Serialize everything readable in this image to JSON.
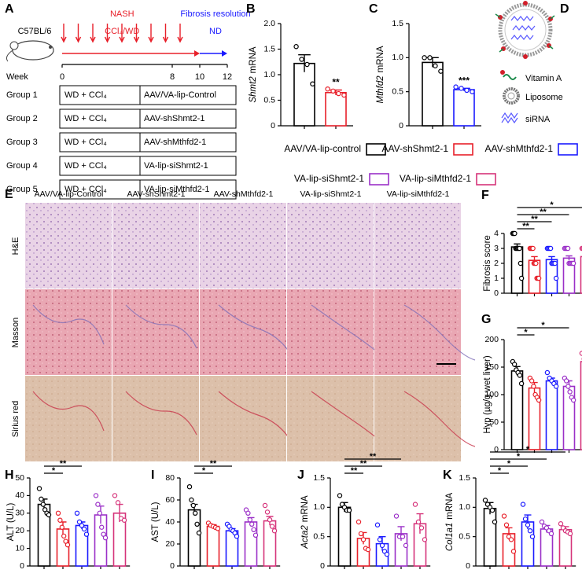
{
  "panel_a": {
    "label": "A",
    "strain": "C57BL/6",
    "axis_label": "Week",
    "xlim": [
      0,
      12
    ],
    "xticks": [
      0,
      8,
      10,
      12
    ],
    "phases": [
      {
        "label": "NASH",
        "sub": "CCl₄/WD",
        "start": 0,
        "end": 10,
        "color": "#e8202a"
      },
      {
        "label": "Fibrosis resolution",
        "sub": "ND",
        "start": 10,
        "end": 12,
        "color": "#1a1aff"
      }
    ],
    "groups": [
      [
        "Group 1",
        "WD + CCl₄",
        "AAV/VA-lip-Control"
      ],
      [
        "Group 2",
        "WD + CCl₄",
        "AAV-shShmt2-1"
      ],
      [
        "Group 3",
        "WD + CCl₄",
        "AAV-shMthfd2-1"
      ],
      [
        "Group 4",
        "WD + CCl₄",
        "VA-lip-siShmt2-1"
      ],
      [
        "Group 5",
        "WD + CCl₄",
        "VA-lip-siMthfd2-1"
      ]
    ]
  },
  "panel_d": {
    "label": "D",
    "items": [
      "Vitamin A",
      "Liposome",
      "siRNA"
    ]
  },
  "panel_e": {
    "label": "E",
    "columns": [
      "AAV/VA-lip-Control",
      "AAV-shShmt2-1",
      "AAV-shMthfd2-1",
      "VA-lip-siShmt2-1",
      "VA-lip-siMthfd2-1"
    ],
    "rows": [
      "H&E",
      "Masson",
      "Sirius red"
    ]
  },
  "legend": [
    {
      "name": "AAV/VA-lip-control",
      "color": "#000000"
    },
    {
      "name": "AAV-shShmt2-1",
      "color": "#e8202a"
    },
    {
      "name": "AAV-shMthfd2-1",
      "color": "#1a1aff"
    },
    {
      "name": "VA-lip-siShmt2-1",
      "color": "#9b30c8"
    },
    {
      "name": "VA-lip-siMthfd2-1",
      "color": "#d6337a"
    }
  ],
  "chart_data": [
    {
      "type": "bar",
      "panel": "B",
      "ylabel": [
        "Shmt2",
        "mRNA"
      ],
      "ylabel_italic": true,
      "ylim": [
        0,
        2
      ],
      "yticks": [
        0,
        0.5,
        {
          "value": 1,
          "label": "1.0"
        },
        1.5,
        {
          "value": 2,
          "label": "2.0"
        }
      ],
      "colors": [
        "#000000",
        "#e8202a"
      ],
      "values": [
        1.22,
        0.65
      ],
      "errors": [
        0.17,
        0.05
      ],
      "points": [
        [
          1.55,
          1.3,
          1.2,
          0.82
        ],
        [
          0.72,
          0.68,
          0.63,
          0.6
        ]
      ],
      "annotations": [
        {
          "text": "**",
          "at": 1
        }
      ]
    },
    {
      "type": "bar",
      "panel": "C",
      "ylabel": [
        "Mthfd2",
        "mRNA"
      ],
      "ylabel_italic": true,
      "ylim": [
        0,
        1.5
      ],
      "yticks": [
        0,
        0.5,
        {
          "value": 1,
          "label": "1.0"
        },
        1.5
      ],
      "colors": [
        "#000000",
        "#1a1aff"
      ],
      "values": [
        0.93,
        0.53
      ],
      "errors": [
        0.07,
        0.02
      ],
      "points": [
        [
          1.0,
          1.0,
          0.88,
          0.8
        ],
        [
          0.57,
          0.55,
          0.52,
          0.5
        ]
      ],
      "annotations": [
        {
          "text": "***",
          "at": 1
        }
      ]
    },
    {
      "type": "bar",
      "panel": "F",
      "ylabel": [
        "Fibrosis  score"
      ],
      "ylabel_italic": false,
      "ylim": [
        0,
        4
      ],
      "yticks": [
        0,
        1,
        2,
        3,
        4
      ],
      "colors": [
        "#000000",
        "#e8202a",
        "#1a1aff",
        "#9b30c8",
        "#d6337a"
      ],
      "values": [
        3.1,
        2.2,
        2.25,
        2.35,
        2.45
      ],
      "errors": [
        0.2,
        0.25,
        0.2,
        0.15,
        0.15
      ],
      "points": [
        [
          4,
          4,
          4,
          3,
          3,
          3,
          3,
          3,
          2,
          1
        ],
        [
          3,
          3,
          3,
          3,
          2,
          2,
          2,
          1,
          1,
          1
        ],
        [
          3,
          3,
          3,
          3,
          2,
          2,
          2,
          2,
          1
        ],
        [
          3,
          3,
          3,
          3,
          2,
          2,
          2,
          2,
          2
        ],
        [
          3,
          3,
          3,
          3,
          3,
          2,
          2,
          2,
          2
        ]
      ],
      "annotations": [
        {
          "text": "**",
          "from": 0,
          "to": 1
        },
        {
          "text": "**",
          "from": 0,
          "to": 2
        },
        {
          "text": "**",
          "from": 0,
          "to": 3
        },
        {
          "text": "*",
          "from": 0,
          "to": 4
        }
      ]
    },
    {
      "type": "bar",
      "panel": "G",
      "ylabel": [
        "Hyp (µg/g wet liver)"
      ],
      "ylabel_italic": false,
      "ylim": [
        0,
        200
      ],
      "yticks": [
        0,
        50,
        100,
        150,
        200
      ],
      "colors": [
        "#000000",
        "#e8202a",
        "#1a1aff",
        "#9b30c8",
        "#d6337a"
      ],
      "values": [
        143,
        112,
        125,
        115,
        160
      ],
      "errors": [
        8,
        10,
        5,
        10,
        6
      ],
      "points": [
        [
          160,
          155,
          145,
          140,
          135,
          120
        ],
        [
          130,
          125,
          115,
          100,
          95,
          90
        ],
        [
          140,
          130,
          125,
          120,
          115
        ],
        [
          130,
          125,
          115,
          105,
          95,
          90
        ],
        [
          175,
          165,
          160,
          155,
          150
        ]
      ],
      "annotations": [
        {
          "text": "*",
          "from": 0,
          "to": 1
        },
        {
          "text": "*",
          "from": 0,
          "to": 3
        }
      ]
    },
    {
      "type": "bar",
      "panel": "H",
      "ylabel": [
        "ALT (U/L)"
      ],
      "ylabel_italic": false,
      "ylim": [
        0,
        50
      ],
      "yticks": [
        0,
        10,
        20,
        30,
        40,
        50
      ],
      "colors": [
        "#000000",
        "#e8202a",
        "#1a1aff",
        "#9b30c8",
        "#d6337a"
      ],
      "values": [
        35,
        21,
        23,
        29,
        30
      ],
      "errors": [
        3,
        4,
        2,
        5,
        5
      ],
      "points": [
        [
          44,
          38,
          35,
          32,
          30,
          29
        ],
        [
          30,
          26,
          22,
          17,
          14,
          12
        ],
        [
          30,
          25,
          23,
          21,
          18
        ],
        [
          40,
          35,
          30,
          22,
          18,
          16
        ],
        [
          40,
          36,
          27,
          26
        ]
      ],
      "annotations": [
        {
          "text": "*",
          "from": 0,
          "to": 1
        },
        {
          "text": "**",
          "from": 0,
          "to": 2
        }
      ]
    },
    {
      "type": "bar",
      "panel": "I",
      "ylabel": [
        "AST (U/L)"
      ],
      "ylabel_italic": false,
      "ylim": [
        0,
        80
      ],
      "yticks": [
        0,
        20,
        40,
        60,
        80
      ],
      "colors": [
        "#000000",
        "#e8202a",
        "#1a1aff",
        "#9b30c8",
        "#d6337a"
      ],
      "values": [
        51,
        36,
        32,
        40,
        41
      ],
      "errors": [
        5,
        1.5,
        2,
        4,
        4
      ],
      "points": [
        [
          72,
          60,
          55,
          48,
          38,
          30
        ],
        [
          39,
          37,
          36,
          35,
          34
        ],
        [
          38,
          36,
          33,
          32,
          30,
          27
        ],
        [
          51,
          48,
          42,
          38,
          33,
          28
        ],
        [
          55,
          49,
          42,
          36,
          32
        ]
      ],
      "annotations": [
        {
          "text": "*",
          "from": 0,
          "to": 1
        },
        {
          "text": "**",
          "from": 0,
          "to": 2
        }
      ]
    },
    {
      "type": "bar",
      "panel": "J",
      "ylabel": [
        "Acta2",
        "mRNA"
      ],
      "ylabel_italic": true,
      "ylim": [
        0,
        1.5
      ],
      "yticks": [
        0,
        0.5,
        {
          "value": 1,
          "label": "1.0"
        },
        1.5
      ],
      "colors": [
        "#000000",
        "#e8202a",
        "#1a1aff",
        "#9b30c8",
        "#d6337a"
      ],
      "values": [
        1.0,
        0.47,
        0.38,
        0.55,
        0.72
      ],
      "errors": [
        0.08,
        0.1,
        0.12,
        0.12,
        0.17
      ],
      "points": [
        [
          1.2,
          1.05,
          1.0,
          0.95,
          0.95
        ],
        [
          0.75,
          0.55,
          0.45,
          0.3,
          0.28
        ],
        [
          0.7,
          0.45,
          0.35,
          0.25,
          0.2
        ],
        [
          0.85,
          0.5,
          0.5,
          0.35
        ],
        [
          1.05,
          0.75,
          0.65,
          0.45
        ]
      ],
      "annotations": [
        {
          "text": "**",
          "from": 0,
          "to": 1
        },
        {
          "text": "**",
          "from": 0,
          "to": 2
        },
        {
          "text": "**",
          "from": 0,
          "to": 3
        }
      ]
    },
    {
      "type": "bar",
      "panel": "K",
      "ylabel": [
        "Col1a1",
        "mRNA"
      ],
      "ylabel_italic": true,
      "ylim": [
        0,
        1.5
      ],
      "yticks": [
        0,
        0.5,
        {
          "value": 1,
          "label": "1.0"
        },
        1.5
      ],
      "colors": [
        "#000000",
        "#e8202a",
        "#1a1aff",
        "#9b30c8",
        "#d6337a"
      ],
      "values": [
        0.98,
        0.55,
        0.75,
        0.63,
        0.62
      ],
      "errors": [
        0.1,
        0.1,
        0.12,
        0.06,
        0.05
      ],
      "points": [
        [
          1.12,
          1.05,
          1.0,
          0.95,
          0.75
        ],
        [
          0.85,
          0.7,
          0.5,
          0.45,
          0.25
        ],
        [
          1.05,
          0.8,
          0.7,
          0.6,
          0.5
        ],
        [
          0.75,
          0.68,
          0.65,
          0.6,
          0.55
        ],
        [
          0.72,
          0.65,
          0.6,
          0.58,
          0.55
        ]
      ],
      "annotations": [
        {
          "text": "*",
          "from": 0,
          "to": 1
        },
        {
          "text": "*",
          "from": 0,
          "to": 2
        },
        {
          "text": "*",
          "from": 0,
          "to": 3
        },
        {
          "text": "*",
          "from": 0,
          "to": 4
        }
      ]
    }
  ]
}
